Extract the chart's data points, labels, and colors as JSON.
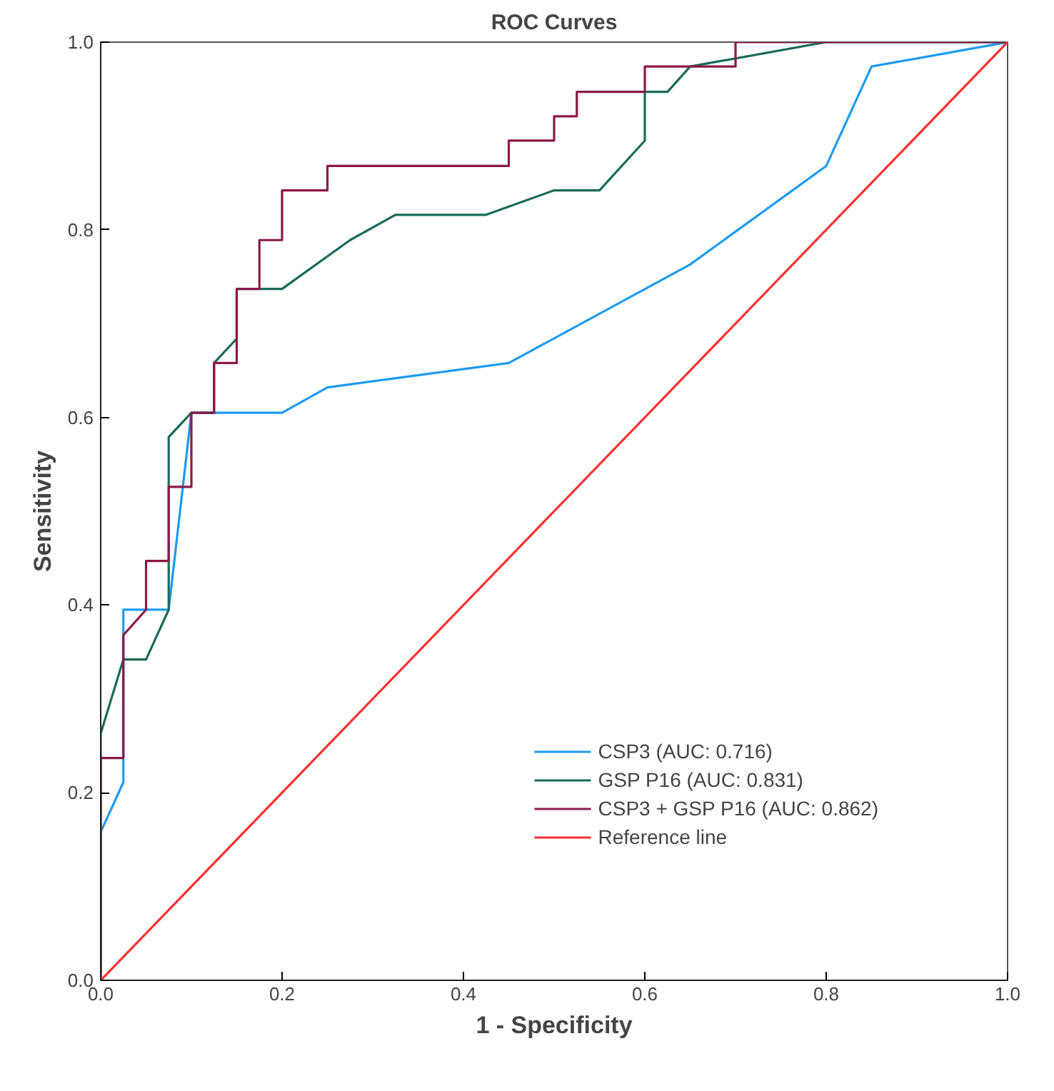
{
  "chart_data": {
    "type": "line",
    "title": "ROC Curves",
    "xlabel": "1 - Specificity",
    "ylabel": "Sensitivity",
    "xlim": [
      0,
      1
    ],
    "ylim": [
      0,
      1
    ],
    "xticks": [
      {
        "value": 0,
        "label": "0.0"
      },
      0.2,
      0.4,
      0.6,
      0.8,
      {
        "value": 1,
        "label": "1.0"
      }
    ],
    "yticks": [
      {
        "value": 0,
        "label": "0.0"
      },
      0.2,
      0.4,
      0.6,
      0.8,
      {
        "value": 1,
        "label": "1.0"
      }
    ],
    "grid": false,
    "legend": "bottom right",
    "marker": "none",
    "line_style": "solid",
    "series": [
      {
        "name": "CSP3 (AUC: 0.716)",
        "color": "#1e9bf0",
        "x": [
          0,
          0,
          0.025,
          0.025,
          0.075,
          0.1,
          0.2,
          0.25,
          0.45,
          0.65,
          0.8,
          0.85,
          1
        ],
        "values": [
          0,
          0.158,
          0.211,
          0.395,
          0.395,
          0.605,
          0.605,
          0.632,
          0.658,
          0.763,
          0.868,
          0.974,
          1
        ]
      },
      {
        "name": "GSP P16 (AUC: 0.831)",
        "color": "#1a6b5a",
        "x": [
          0,
          0,
          0.025,
          0.05,
          0.075,
          0.075,
          0.1,
          0.125,
          0.125,
          0.15,
          0.15,
          0.2,
          0.275,
          0.325,
          0.425,
          0.5,
          0.55,
          0.6,
          0.6,
          0.625,
          0.65,
          0.8,
          1
        ],
        "values": [
          0,
          0.263,
          0.342,
          0.342,
          0.395,
          0.579,
          0.605,
          0.605,
          0.658,
          0.684,
          0.737,
          0.737,
          0.789,
          0.816,
          0.816,
          0.842,
          0.842,
          0.895,
          0.947,
          0.947,
          0.974,
          1,
          1
        ]
      },
      {
        "name": "CSP3 + GSP P16 (AUC: 0.862)",
        "color": "#8b1a4a",
        "x": [
          0,
          0,
          0.025,
          0.025,
          0.05,
          0.05,
          0.075,
          0.075,
          0.1,
          0.1,
          0.125,
          0.125,
          0.15,
          0.15,
          0.175,
          0.175,
          0.2,
          0.2,
          0.25,
          0.25,
          0.45,
          0.45,
          0.5,
          0.5,
          0.525,
          0.525,
          0.6,
          0.6,
          0.7,
          0.7,
          1
        ],
        "values": [
          0,
          0.237,
          0.237,
          0.368,
          0.395,
          0.447,
          0.447,
          0.526,
          0.526,
          0.605,
          0.605,
          0.658,
          0.658,
          0.737,
          0.737,
          0.789,
          0.789,
          0.842,
          0.842,
          0.868,
          0.868,
          0.895,
          0.895,
          0.921,
          0.921,
          0.947,
          0.947,
          0.974,
          0.974,
          1,
          1
        ]
      },
      {
        "name": "Reference line",
        "color": "#ff3030",
        "x": [
          0,
          1
        ],
        "values": [
          0,
          1
        ]
      }
    ]
  }
}
